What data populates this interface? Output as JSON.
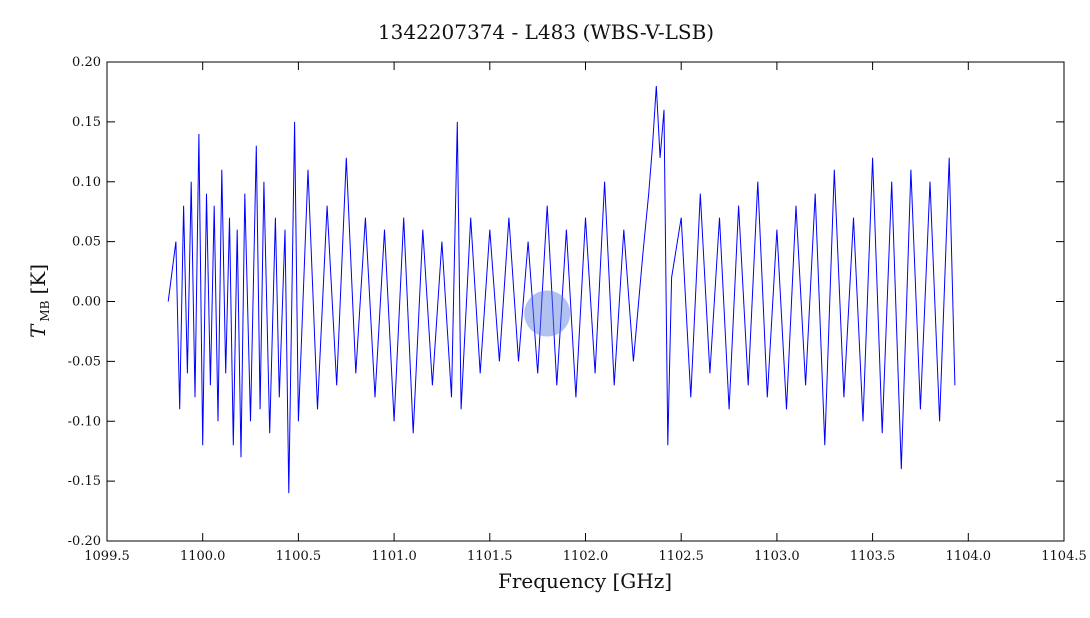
{
  "chart_data": {
    "type": "line",
    "title": "1342207374 - L483 (WBS-V-LSB)",
    "xlabel": "Frequency [GHz]",
    "ylabel_main": "T",
    "ylabel_sub": "MB",
    "ylabel_unit": "[K]",
    "xlim": [
      1099.5,
      1104.5
    ],
    "ylim": [
      -0.2,
      0.2
    ],
    "x_ticks": [
      1099.5,
      1100.0,
      1100.5,
      1101.0,
      1101.5,
      1102.0,
      1102.5,
      1103.0,
      1103.5,
      1104.0,
      1104.5
    ],
    "x_tick_labels": [
      "1099.5",
      "1100.0",
      "1100.5",
      "1101.0",
      "1101.5",
      "1102.0",
      "1102.5",
      "1103.0",
      "1103.5",
      "1104.0",
      "1104.5"
    ],
    "y_ticks": [
      -0.2,
      -0.15,
      -0.1,
      -0.05,
      0.0,
      0.05,
      0.1,
      0.15,
      0.2
    ],
    "y_tick_labels": [
      "-0.20",
      "-0.15",
      "-0.10",
      "-0.05",
      "0.00",
      "0.05",
      "0.10",
      "0.15",
      "0.20"
    ],
    "grid": false,
    "line_color": "#0000ff",
    "spot_color": "#5577dd",
    "series": [
      {
        "x": [
          1099.82,
          1099.86,
          1099.88,
          1099.9,
          1099.92,
          1099.94,
          1099.96,
          1099.98,
          1100.0,
          1100.02,
          1100.04,
          1100.06,
          1100.08,
          1100.1,
          1100.12,
          1100.14,
          1100.16,
          1100.18,
          1100.2,
          1100.22,
          1100.25,
          1100.28,
          1100.3,
          1100.32,
          1100.35,
          1100.38,
          1100.4,
          1100.43,
          1100.45,
          1100.48,
          1100.5,
          1100.55,
          1100.6,
          1100.65,
          1100.7,
          1100.75,
          1100.8,
          1100.85,
          1100.9,
          1100.95,
          1101.0,
          1101.05,
          1101.1,
          1101.15,
          1101.2,
          1101.25,
          1101.3,
          1101.33,
          1101.35,
          1101.4,
          1101.45,
          1101.5,
          1101.55,
          1101.6,
          1101.65,
          1101.7,
          1101.75,
          1101.8,
          1101.85,
          1101.9,
          1101.95,
          1102.0,
          1102.05,
          1102.1,
          1102.15,
          1102.2,
          1102.25,
          1102.3,
          1102.33,
          1102.35,
          1102.37,
          1102.39,
          1102.41,
          1102.43,
          1102.45,
          1102.5,
          1102.55,
          1102.6,
          1102.65,
          1102.7,
          1102.75,
          1102.8,
          1102.85,
          1102.9,
          1102.95,
          1103.0,
          1103.05,
          1103.1,
          1103.15,
          1103.2,
          1103.25,
          1103.3,
          1103.35,
          1103.4,
          1103.45,
          1103.5,
          1103.55,
          1103.6,
          1103.65,
          1103.7,
          1103.75,
          1103.8,
          1103.85,
          1103.9,
          1103.93
        ],
        "y": [
          0.0,
          0.05,
          -0.09,
          0.08,
          -0.06,
          0.1,
          -0.08,
          0.14,
          -0.12,
          0.09,
          -0.07,
          0.08,
          -0.1,
          0.11,
          -0.06,
          0.07,
          -0.12,
          0.06,
          -0.13,
          0.09,
          -0.1,
          0.13,
          -0.09,
          0.1,
          -0.11,
          0.07,
          -0.08,
          0.06,
          -0.16,
          0.15,
          -0.1,
          0.11,
          -0.09,
          0.08,
          -0.07,
          0.12,
          -0.06,
          0.07,
          -0.08,
          0.06,
          -0.1,
          0.07,
          -0.11,
          0.06,
          -0.07,
          0.05,
          -0.08,
          0.15,
          -0.09,
          0.07,
          -0.06,
          0.06,
          -0.05,
          0.07,
          -0.05,
          0.05,
          -0.06,
          0.08,
          -0.07,
          0.06,
          -0.08,
          0.07,
          -0.06,
          0.1,
          -0.07,
          0.06,
          -0.05,
          0.04,
          0.09,
          0.13,
          0.18,
          0.12,
          0.16,
          -0.12,
          0.02,
          0.07,
          -0.08,
          0.09,
          -0.06,
          0.07,
          -0.09,
          0.08,
          -0.07,
          0.1,
          -0.08,
          0.06,
          -0.09,
          0.08,
          -0.07,
          0.09,
          -0.12,
          0.11,
          -0.08,
          0.07,
          -0.1,
          0.12,
          -0.11,
          0.1,
          -0.14,
          0.11,
          -0.09,
          0.1,
          -0.1,
          0.12,
          -0.07
        ]
      }
    ]
  }
}
